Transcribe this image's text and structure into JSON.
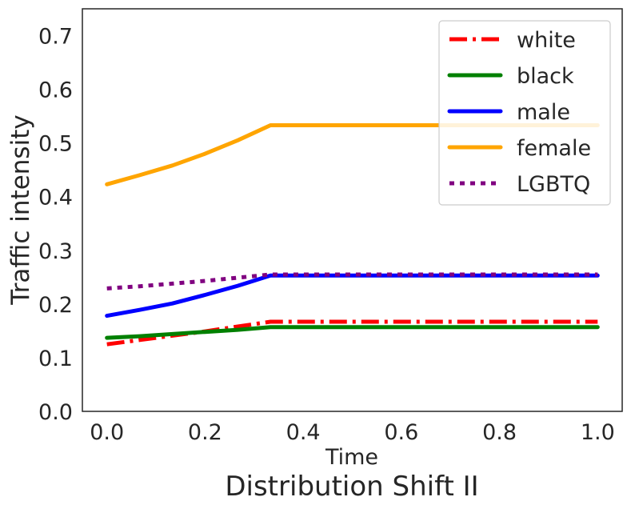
{
  "chart_data": {
    "type": "line",
    "title": "Distribution Shift II",
    "xlabel": "Time",
    "ylabel": "Traffic intensity",
    "xlim": [
      -0.05,
      1.05
    ],
    "ylim": [
      0.0,
      0.75
    ],
    "xticks": [
      0.0,
      0.2,
      0.4,
      0.6,
      0.8,
      1.0
    ],
    "xtick_labels": [
      "0.0",
      "0.2",
      "0.4",
      "0.6",
      "0.8",
      "1.0"
    ],
    "yticks": [
      0.0,
      0.1,
      0.2,
      0.3,
      0.4,
      0.5,
      0.6,
      0.7
    ],
    "ytick_labels": [
      "0.0",
      "0.1",
      "0.2",
      "0.3",
      "0.4",
      "0.5",
      "0.6",
      "0.7"
    ],
    "grid": false,
    "legend_position": "top-right",
    "series": [
      {
        "name": "white",
        "color": "#ff0000",
        "style": "dashdot",
        "x": [
          0.0,
          0.0667,
          0.1333,
          0.2,
          0.2667,
          0.3333,
          1.0
        ],
        "y": [
          0.125,
          0.133,
          0.141,
          0.149,
          0.158,
          0.167,
          0.167
        ]
      },
      {
        "name": "black",
        "color": "#008000",
        "style": "solid",
        "x": [
          0.0,
          0.0667,
          0.1333,
          0.2,
          0.2667,
          0.3333,
          1.0
        ],
        "y": [
          0.137,
          0.14,
          0.144,
          0.148,
          0.152,
          0.157,
          0.157
        ]
      },
      {
        "name": "male",
        "color": "#0000ff",
        "style": "solid",
        "x": [
          0.0,
          0.0667,
          0.1333,
          0.2,
          0.2667,
          0.3333,
          1.0
        ],
        "y": [
          0.178,
          0.189,
          0.201,
          0.217,
          0.234,
          0.253,
          0.253
        ]
      },
      {
        "name": "female",
        "color": "#ffa500",
        "style": "solid",
        "x": [
          0.0,
          0.0667,
          0.1333,
          0.2,
          0.2667,
          0.3333,
          1.0
        ],
        "y": [
          0.423,
          0.44,
          0.458,
          0.48,
          0.505,
          0.533,
          0.533
        ]
      },
      {
        "name": "LGBTQ",
        "color": "#800080",
        "style": "dotted",
        "x": [
          0.0,
          0.0667,
          0.1333,
          0.2,
          0.2667,
          0.3333,
          1.0
        ],
        "y": [
          0.229,
          0.233,
          0.238,
          0.243,
          0.249,
          0.255,
          0.255
        ]
      }
    ]
  }
}
